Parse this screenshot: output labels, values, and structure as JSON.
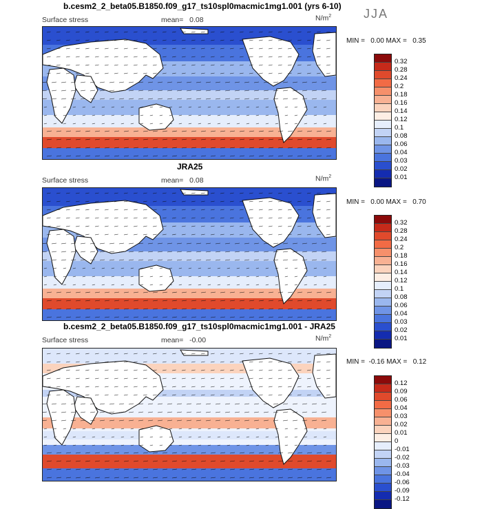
{
  "season": "JJA",
  "units_base": "N/m",
  "units_exp": "2",
  "panels": [
    {
      "title": "b.cesm2_2_beta05.B1850.f09_g17_ts10spl0macmic1mg1.001 (yrs 6-10)",
      "variable": "Surface stress",
      "mean_label": "mean=",
      "mean_value": "0.08",
      "min_label": "MIN =",
      "min_value": "0.00",
      "max_label": "MAX =",
      "max_value": "0.35",
      "colorbar_labels": [
        "0.32",
        "0.28",
        "0.24",
        "0.2",
        "0.18",
        "0.16",
        "0.14",
        "0.12",
        "0.1",
        "0.08",
        "0.06",
        "0.04",
        "0.03",
        "0.02",
        "0.01"
      ],
      "colorbar_colors": [
        "#8b0a0a",
        "#c62a1a",
        "#e04a2c",
        "#f26b45",
        "#f6906b",
        "#f8b193",
        "#fbd3bd",
        "#fdeee4",
        "#e6eefc",
        "#c2d3f5",
        "#9ab7ee",
        "#6f94e6",
        "#4a74de",
        "#2a4fcf",
        "#142cb0",
        "#0a1683"
      ]
    },
    {
      "title": "JRA25",
      "variable": "Surface stress",
      "mean_label": "mean=",
      "mean_value": "0.08",
      "min_label": "MIN =",
      "min_value": "0.00",
      "max_label": "MAX =",
      "max_value": "0.70",
      "colorbar_labels": [
        "0.32",
        "0.28",
        "0.24",
        "0.2",
        "0.18",
        "0.16",
        "0.14",
        "0.12",
        "0.1",
        "0.08",
        "0.06",
        "0.04",
        "0.03",
        "0.02",
        "0.01"
      ],
      "colorbar_colors": [
        "#8b0a0a",
        "#c62a1a",
        "#e04a2c",
        "#f26b45",
        "#f6906b",
        "#f8b193",
        "#fbd3bd",
        "#fdeee4",
        "#e6eefc",
        "#c2d3f5",
        "#9ab7ee",
        "#6f94e6",
        "#4a74de",
        "#2a4fcf",
        "#142cb0",
        "#0a1683"
      ]
    },
    {
      "title": "b.cesm2_2_beta05.B1850.f09_g17_ts10spl0macmic1mg1.001 - JRA25",
      "variable": "Surface stress",
      "mean_label": "mean=",
      "mean_value": "-0.00",
      "min_label": "MIN =",
      "min_value": "-0.16",
      "max_label": "MAX =",
      "max_value": "0.12",
      "colorbar_labels": [
        "0.12",
        "0.09",
        "0.06",
        "0.04",
        "0.03",
        "0.02",
        "0.01",
        "0",
        "-0.01",
        "-0.02",
        "-0.03",
        "-0.04",
        "-0.06",
        "-0.09",
        "-0.12"
      ],
      "colorbar_colors": [
        "#8b0a0a",
        "#c62a1a",
        "#e04a2c",
        "#f26b45",
        "#f6906b",
        "#f8b193",
        "#fbd3bd",
        "#fdeee4",
        "#e6eefc",
        "#c2d3f5",
        "#9ab7ee",
        "#6f94e6",
        "#4a74de",
        "#2a4fcf",
        "#142cb0",
        "#0a1683"
      ]
    }
  ]
}
